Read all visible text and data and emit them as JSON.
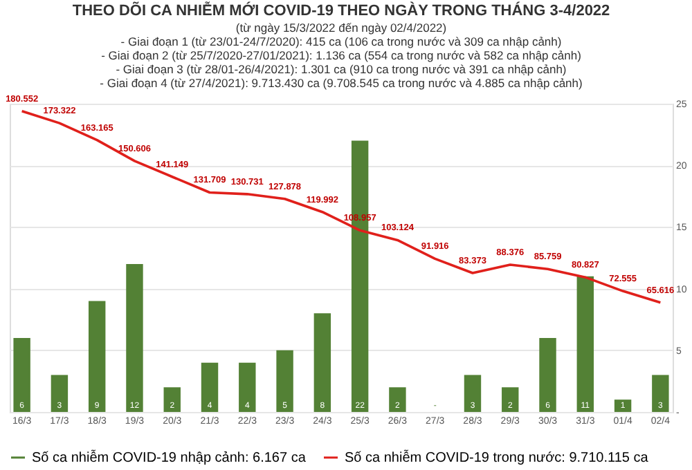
{
  "chart_data": {
    "type": "bar",
    "title": "THEO DÕI CA NHIỄM MỚI COVID-19 THEO NGÀY TRONG THÁNG 3-4/2022",
    "subtitle": "(từ ngày 15/3/2022 đến ngày 02/4/2022)",
    "annotations": [
      "- Giai đoạn 1 (từ 23/01-24/7/2020): 415 ca (106 ca trong nước và 309 ca nhập cảnh)",
      "- Giai đoạn 2 (từ 25/7/2020-27/01/2021): 1.136 ca (554 ca trong nước và 582 ca nhập cảnh)",
      "- Giai đoạn 3 (từ 28/01-26/4/2021): 1.301 ca (910 ca trong nước và 391 ca nhập cảnh)",
      "- Giai đoạn 4 (từ 27/4/2021): 9.713.430 ca (9.708.545 ca trong nước và 4.885 ca nhập cảnh)"
    ],
    "categories": [
      "16/3",
      "17/3",
      "18/3",
      "19/3",
      "20/3",
      "21/3",
      "22/3",
      "23/3",
      "24/3",
      "25/3",
      "26/3",
      "27/3",
      "28/3",
      "29/3",
      "30/3",
      "31/3",
      "01/4",
      "02/4"
    ],
    "series": [
      {
        "name": "Số ca nhiễm COVID-19 nhập cảnh: 6.167 ca",
        "color": "#538135",
        "values": [
          6,
          3,
          9,
          12,
          2,
          4,
          4,
          5,
          8,
          22,
          2,
          0,
          3,
          2,
          6,
          11,
          1,
          3
        ],
        "value_labels": [
          "6",
          "3",
          "9",
          "12",
          "2",
          "4",
          "4",
          "5",
          "8",
          "22",
          "2",
          "-",
          "3",
          "2",
          "6",
          "11",
          "1",
          "3"
        ]
      },
      {
        "name": "Số ca nhiễm COVID-19 trong nước: 9.710.115 ca",
        "type": "line",
        "axis": "y2",
        "color": "#e0201b",
        "values": [
          180552,
          173322,
          163165,
          150606,
          141149,
          131709,
          130731,
          127878,
          119992,
          108957,
          103124,
          91916,
          83373,
          88376,
          85759,
          80827,
          72555,
          65616
        ],
        "value_labels": [
          "180.552",
          "173.322",
          "163.165",
          "150.606",
          "141.149",
          "131.709",
          "130.731",
          "127.878",
          "119.992",
          "108.957",
          "103.124",
          "91.916",
          "83.373",
          "88.376",
          "85.759",
          "80.827",
          "72.555",
          "65.616"
        ]
      }
    ],
    "ylim": [
      0,
      25
    ],
    "yticks": [
      {
        "value": 0,
        "label": "-"
      },
      5,
      10,
      15,
      20,
      25
    ],
    "y2lim": [
      0,
      185000
    ],
    "tick_labels": "xy",
    "grid": "y",
    "legend": "bottom",
    "marker": "none",
    "line_style": "solid"
  }
}
